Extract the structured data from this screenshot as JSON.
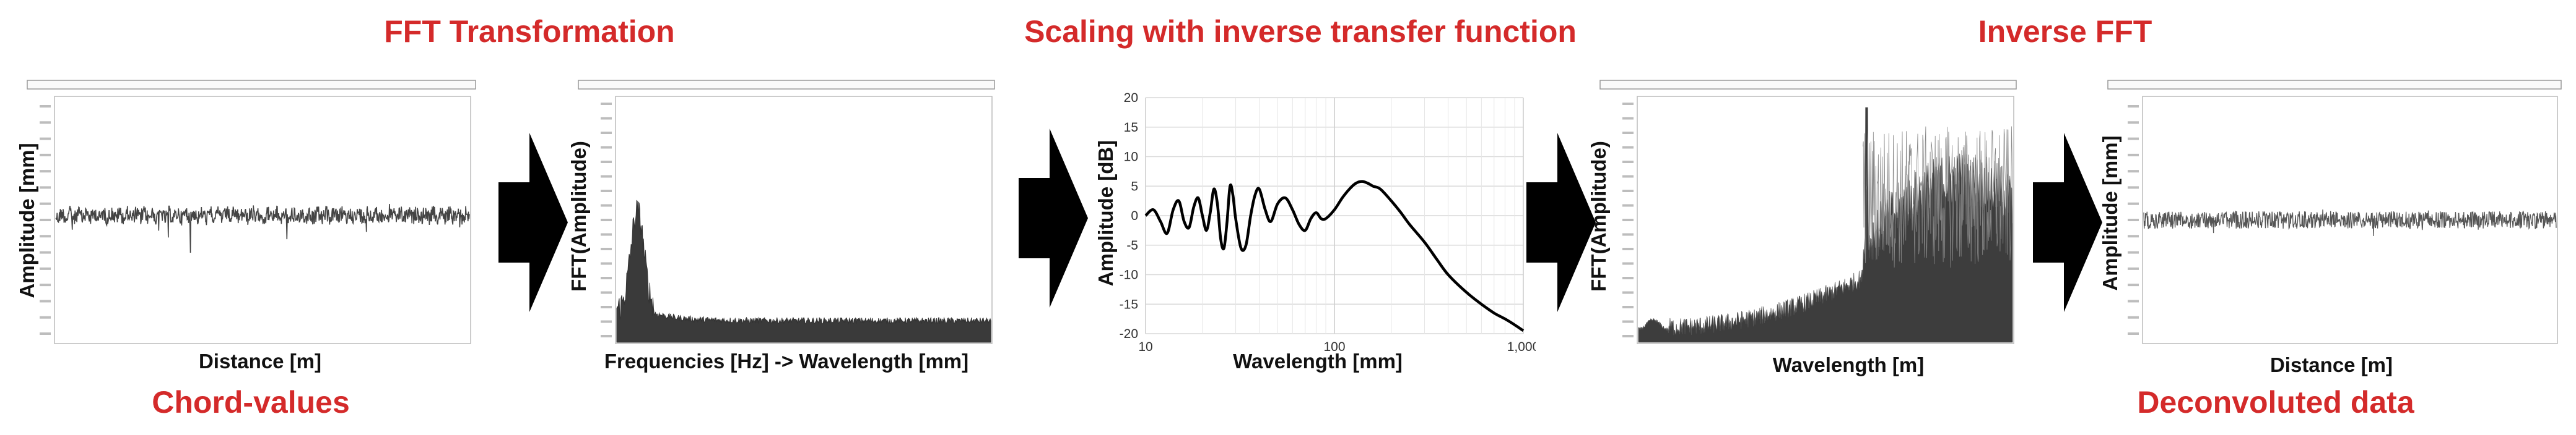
{
  "headings": {
    "fft_transformation": "FFT Transformation",
    "scaling": "Scaling with inverse transfer function",
    "inverse_fft": "Inverse FFT",
    "chord_values": "Chord-values",
    "deconvoluted_data": "Deconvoluted data"
  },
  "panels": {
    "chord": {
      "ylabel": "Amplitude [mm]",
      "xlabel": "Distance [m]"
    },
    "fft": {
      "ylabel": "FFT(Amplitude)",
      "xlabel": "Frequencies [Hz] -> Wavelength [mm]"
    },
    "transfer": {
      "ylabel": "Amplitude [dB]",
      "xlabel": "Wavelength [mm]"
    },
    "inverse": {
      "ylabel": "FFT(Amplitude)",
      "xlabel": "Wavelength [m]"
    },
    "deconv": {
      "ylabel": "Amplitude [mm]",
      "xlabel": "Distance [m]"
    }
  },
  "chart_data": {
    "type": "line",
    "xlabel": "Wavelength [mm]",
    "ylabel": "Amplitude [dB]",
    "x_scale": "log",
    "xlim": [
      10,
      1000
    ],
    "ylim": [
      -20,
      20
    ],
    "x_ticks": [
      "10",
      "100",
      "1,000"
    ],
    "y_ticks": [
      "20",
      "15",
      "10",
      "5",
      "0",
      "-5",
      "-10",
      "-15",
      "-20"
    ],
    "grid": true,
    "series": [
      {
        "x": [
          10,
          11,
          12,
          13,
          14,
          15,
          16,
          17,
          18,
          19,
          20,
          21,
          22,
          23,
          24,
          25,
          26,
          27,
          28,
          29,
          30,
          32,
          34,
          36,
          38,
          40,
          43,
          46,
          50,
          55,
          60,
          65,
          70,
          75,
          80,
          85,
          90,
          100,
          110,
          120,
          130,
          140,
          150,
          160,
          175,
          200,
          225,
          250,
          300,
          350,
          400,
          500,
          600,
          700,
          800,
          900,
          1000
        ],
        "y": [
          0,
          1,
          -1,
          -3,
          1,
          2.5,
          -1,
          -2,
          1.5,
          3,
          0,
          -2.5,
          0.5,
          4.5,
          2,
          -4,
          -5.5,
          -1,
          5,
          3.5,
          -0.5,
          -5.5,
          -5,
          0,
          3.5,
          4.5,
          1,
          -1,
          2,
          3,
          1,
          -1.5,
          -2.5,
          -0.5,
          0.5,
          -0.5,
          -0.5,
          1,
          3,
          4.5,
          5.5,
          5.8,
          5.5,
          5,
          4.5,
          2.5,
          0.5,
          -1.5,
          -4.5,
          -7.5,
          -10,
          -13,
          -15,
          -16.5,
          -17.5,
          -18.5,
          -19.5
        ]
      }
    ]
  }
}
